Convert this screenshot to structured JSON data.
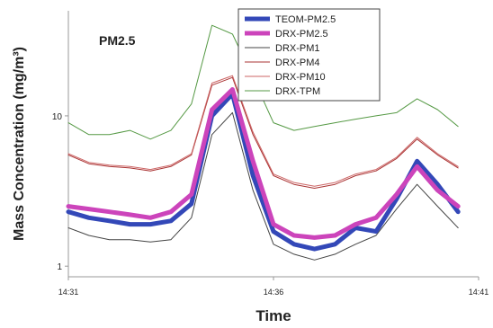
{
  "chart_data": {
    "type": "line",
    "title": "",
    "annotation": "PM2.5",
    "xlabel": "Time",
    "ylabel": "Mass Concentration (mg/m³)",
    "yscale": "log",
    "ylim": [
      0.85,
      50
    ],
    "xlim": [
      "14:31",
      "14:41"
    ],
    "x_ticks": [
      "14:31",
      "14:36",
      "14:41"
    ],
    "y_ticks": [
      1,
      10
    ],
    "y_tick_labels": [
      "1",
      "10"
    ],
    "grid": false,
    "legend_position": "top-right",
    "x": [
      "14:31:00",
      "14:31:30",
      "14:32:00",
      "14:32:30",
      "14:33:00",
      "14:33:30",
      "14:34:00",
      "14:34:30",
      "14:35:00",
      "14:35:30",
      "14:36:00",
      "14:36:30",
      "14:37:00",
      "14:37:30",
      "14:38:00",
      "14:38:30",
      "14:39:00",
      "14:39:30",
      "14:40:00",
      "14:40:30"
    ],
    "series": [
      {
        "name": "TEOM-PM2.5",
        "color": "#3348b8",
        "width": 5,
        "values": [
          2.3,
          2.1,
          2.0,
          1.9,
          1.9,
          2.0,
          2.6,
          10.0,
          14.0,
          4.0,
          1.7,
          1.4,
          1.3,
          1.4,
          1.8,
          1.7,
          2.8,
          5.0,
          3.5,
          2.3
        ]
      },
      {
        "name": "DRX-PM2.5",
        "color": "#cc44bb",
        "width": 5,
        "values": [
          2.5,
          2.4,
          2.3,
          2.2,
          2.1,
          2.3,
          3.0,
          11.0,
          15.0,
          5.0,
          1.9,
          1.6,
          1.55,
          1.6,
          1.9,
          2.1,
          3.0,
          4.6,
          3.2,
          2.5
        ]
      },
      {
        "name": "DRX-PM1",
        "color": "#444444",
        "width": 1,
        "values": [
          1.8,
          1.6,
          1.5,
          1.5,
          1.45,
          1.5,
          2.1,
          7.5,
          10.5,
          3.2,
          1.4,
          1.2,
          1.1,
          1.2,
          1.4,
          1.6,
          2.4,
          3.5,
          2.5,
          1.8
        ]
      },
      {
        "name": "DRX-PM4",
        "color": "#aa3333",
        "width": 1,
        "values": [
          5.5,
          4.8,
          4.6,
          4.5,
          4.3,
          4.6,
          5.5,
          16.0,
          18.0,
          7.5,
          4.0,
          3.5,
          3.3,
          3.5,
          4.0,
          4.3,
          5.2,
          7.0,
          5.5,
          4.5
        ]
      },
      {
        "name": "DRX-PM10",
        "color": "#cc6666",
        "width": 1,
        "values": [
          5.6,
          4.9,
          4.7,
          4.6,
          4.4,
          4.7,
          5.6,
          16.5,
          18.5,
          7.8,
          4.1,
          3.6,
          3.4,
          3.6,
          4.1,
          4.4,
          5.3,
          7.2,
          5.6,
          4.6
        ]
      },
      {
        "name": "DRX-TPM",
        "color": "#559944",
        "width": 1,
        "values": [
          9.0,
          7.5,
          7.5,
          8.0,
          7.0,
          8.0,
          12.0,
          40.0,
          35.0,
          18.0,
          9.0,
          8.0,
          8.5,
          9.0,
          9.5,
          10.0,
          10.5,
          13.0,
          11.0,
          8.5
        ]
      }
    ]
  }
}
